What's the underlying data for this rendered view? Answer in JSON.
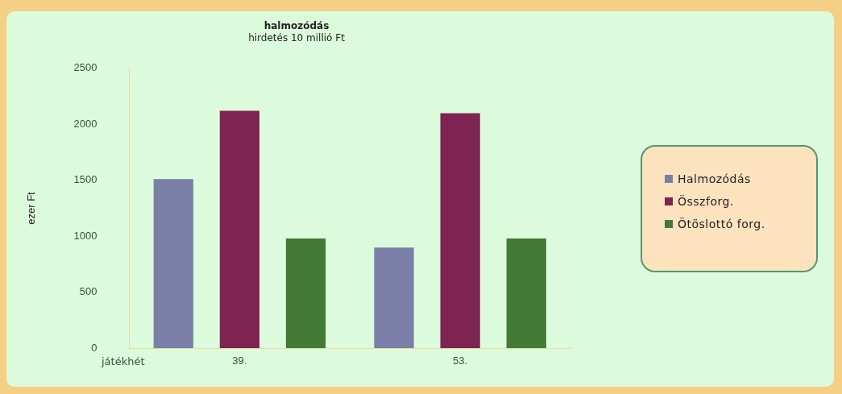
{
  "chart_data": {
    "type": "bar",
    "title": "halmozódás",
    "subtitle": "hirdetés 10 millió Ft",
    "xlabel": "játékhét",
    "ylabel": "ezer Ft",
    "categories": [
      "39.",
      "53."
    ],
    "series": [
      {
        "name": "Halmozódás",
        "color": "#7b7fa8",
        "values": [
          1510,
          900
        ]
      },
      {
        "name": "Összforg.",
        "color": "#7e2452",
        "values": [
          2120,
          2100
        ]
      },
      {
        "name": "Ötöslottó forg.",
        "color": "#427a35",
        "values": [
          980,
          980
        ]
      }
    ],
    "ylim": [
      0,
      2500
    ],
    "yticks": [
      0,
      500,
      1000,
      1500,
      2000,
      2500
    ],
    "grid": false,
    "legend": "right"
  }
}
